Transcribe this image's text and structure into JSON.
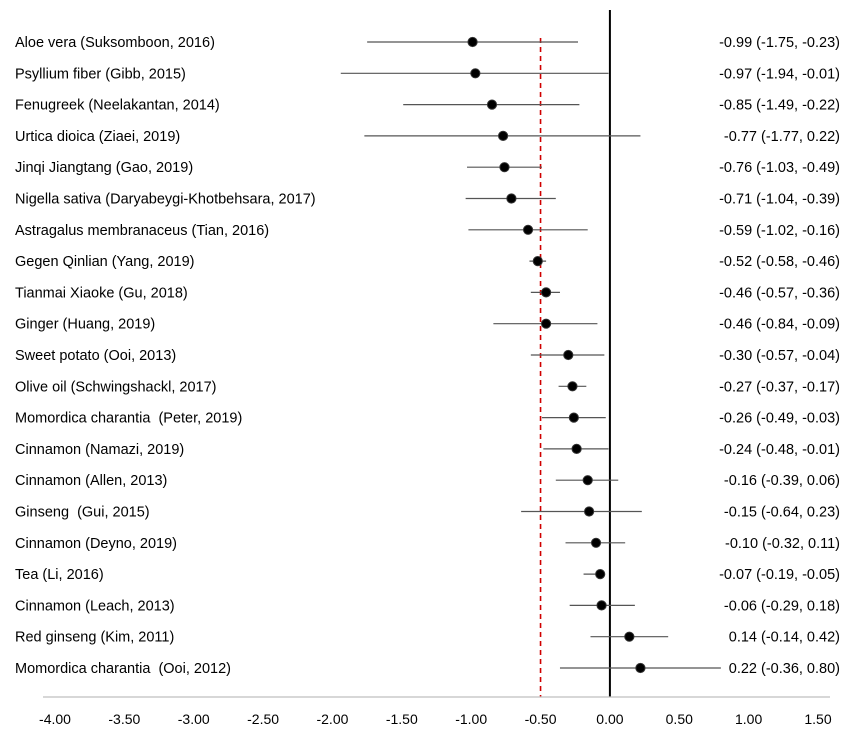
{
  "chart_data": {
    "type": "forest",
    "title": "",
    "xlabel": "",
    "ylabel": "",
    "xlim": [
      -4.0,
      1.5
    ],
    "x_ticks": [
      "-4.00",
      "-3.50",
      "-3.00",
      "-2.50",
      "-2.00",
      "-1.50",
      "-1.00",
      "-0.50",
      "0.00",
      "0.50",
      "1.00",
      "1.50"
    ],
    "x_tick_values": [
      -4.0,
      -3.5,
      -3.0,
      -2.5,
      -2.0,
      -1.5,
      -1.0,
      -0.5,
      0.0,
      0.5,
      1.0,
      1.5
    ],
    "null_line": 0.0,
    "pooled_line": -0.5,
    "grid": false,
    "colors": {
      "marker": "#000000",
      "ci_line": "#555555",
      "null_line": "#000000",
      "pooled_line": "#d00000",
      "axis": "#bfbfbf"
    },
    "studies": [
      {
        "label": "Aloe vera (Suksomboon, 2016)",
        "estimate": -0.99,
        "lower": -1.75,
        "upper": -0.23,
        "ci_text": "-0.99 (-1.75, -0.23)"
      },
      {
        "label": "Psyllium fiber (Gibb, 2015)",
        "estimate": -0.97,
        "lower": -1.94,
        "upper": -0.01,
        "ci_text": "-0.97 (-1.94, -0.01)"
      },
      {
        "label": "Fenugreek (Neelakantan, 2014)",
        "estimate": -0.85,
        "lower": -1.49,
        "upper": -0.22,
        "ci_text": "-0.85 (-1.49, -0.22)"
      },
      {
        "label": "Urtica dioica (Ziaei, 2019)",
        "estimate": -0.77,
        "lower": -1.77,
        "upper": 0.22,
        "ci_text": "-0.77 (-1.77, 0.22)"
      },
      {
        "label": "Jinqi Jiangtang (Gao, 2019)",
        "estimate": -0.76,
        "lower": -1.03,
        "upper": -0.49,
        "ci_text": "-0.76 (-1.03, -0.49)"
      },
      {
        "label": "Nigella sativa (Daryabeygi-Khotbehsara, 2017)",
        "estimate": -0.71,
        "lower": -1.04,
        "upper": -0.39,
        "ci_text": "-0.71 (-1.04, -0.39)"
      },
      {
        "label": "Astragalus membranaceus (Tian, 2016)",
        "estimate": -0.59,
        "lower": -1.02,
        "upper": -0.16,
        "ci_text": "-0.59 (-1.02, -0.16)"
      },
      {
        "label": "Gegen Qinlian (Yang, 2019)",
        "estimate": -0.52,
        "lower": -0.58,
        "upper": -0.46,
        "ci_text": "-0.52 (-0.58, -0.46)"
      },
      {
        "label": "Tianmai Xiaoke (Gu, 2018)",
        "estimate": -0.46,
        "lower": -0.57,
        "upper": -0.36,
        "ci_text": "-0.46 (-0.57, -0.36)"
      },
      {
        "label": "Ginger (Huang, 2019)",
        "estimate": -0.46,
        "lower": -0.84,
        "upper": -0.09,
        "ci_text": "-0.46 (-0.84, -0.09)"
      },
      {
        "label": "Sweet potato (Ooi, 2013)",
        "estimate": -0.3,
        "lower": -0.57,
        "upper": -0.04,
        "ci_text": "-0.30 (-0.57, -0.04)"
      },
      {
        "label": "Olive oil (Schwingshackl, 2017)",
        "estimate": -0.27,
        "lower": -0.37,
        "upper": -0.17,
        "ci_text": "-0.27 (-0.37, -0.17)"
      },
      {
        "label": "Momordica charantia  (Peter, 2019)",
        "estimate": -0.26,
        "lower": -0.49,
        "upper": -0.03,
        "ci_text": "-0.26 (-0.49, -0.03)"
      },
      {
        "label": "Cinnamon (Namazi, 2019)",
        "estimate": -0.24,
        "lower": -0.48,
        "upper": -0.01,
        "ci_text": "-0.24 (-0.48, -0.01)"
      },
      {
        "label": "Cinnamon (Allen, 2013)",
        "estimate": -0.16,
        "lower": -0.39,
        "upper": 0.06,
        "ci_text": "-0.16 (-0.39, 0.06)"
      },
      {
        "label": "Ginseng  (Gui, 2015)",
        "estimate": -0.15,
        "lower": -0.64,
        "upper": 0.23,
        "ci_text": "-0.15 (-0.64, 0.23)"
      },
      {
        "label": "Cinnamon (Deyno, 2019)",
        "estimate": -0.1,
        "lower": -0.32,
        "upper": 0.11,
        "ci_text": "-0.10 (-0.32, 0.11)"
      },
      {
        "label": "Tea (Li, 2016)",
        "estimate": -0.07,
        "lower": -0.19,
        "upper": -0.05,
        "ci_text": "-0.07 (-0.19, -0.05)"
      },
      {
        "label": "Cinnamon (Leach, 2013)",
        "estimate": -0.06,
        "lower": -0.29,
        "upper": 0.18,
        "ci_text": "-0.06 (-0.29, 0.18)"
      },
      {
        "label": "Red ginseng (Kim, 2011)",
        "estimate": 0.14,
        "lower": -0.14,
        "upper": 0.42,
        "ci_text": "0.14 (-0.14, 0.42)"
      },
      {
        "label": "Momordica charantia  (Ooi, 2012)",
        "estimate": 0.22,
        "lower": -0.36,
        "upper": 0.8,
        "ci_text": "0.22 (-0.36, 0.80)"
      }
    ]
  }
}
